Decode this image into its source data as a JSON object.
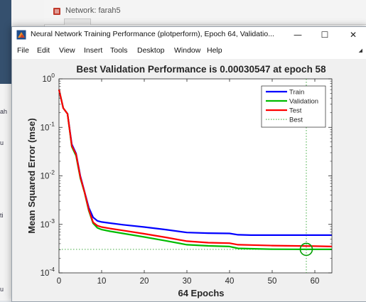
{
  "background_window": {
    "title": "Network: farah5",
    "left_fragments": [
      "ah",
      "u",
      "ti",
      "u"
    ]
  },
  "window": {
    "title": "Neural Network Training Performance (plotperform), Epoch 64, Validatio...",
    "controls": {
      "minimize": "—",
      "maximize": "☐",
      "close": "✕"
    },
    "icon": "matlab-figure-icon"
  },
  "menubar": {
    "items": [
      "File",
      "Edit",
      "View",
      "Insert",
      "Tools",
      "Desktop",
      "Window",
      "Help"
    ]
  },
  "chart_data": {
    "type": "line",
    "title": "Best Validation Performance is 0.00030547 at epoch 58",
    "xlabel": "64 Epochs",
    "ylabel": "Mean Squared Error  (mse)",
    "yscale": "log",
    "xlim": [
      0,
      64
    ],
    "ylim": [
      0.0001,
      1
    ],
    "xticks": [
      0,
      10,
      20,
      30,
      40,
      50,
      60
    ],
    "xtick_labels": [
      "0",
      "10",
      "20",
      "30",
      "40",
      "50",
      "60"
    ],
    "yticks": [
      0.0001,
      0.001,
      0.01,
      0.1,
      1
    ],
    "ytick_labels": [
      {
        "base": "10",
        "exp": "-4"
      },
      {
        "base": "10",
        "exp": "-3"
      },
      {
        "base": "10",
        "exp": "-2"
      },
      {
        "base": "10",
        "exp": "-1"
      },
      {
        "base": "10",
        "exp": "0"
      }
    ],
    "grid": false,
    "legend_position": "top-right",
    "series": [
      {
        "name": "Train",
        "color": "#0000ff",
        "x": [
          0,
          1,
          2,
          3,
          4,
          5,
          6,
          7,
          8,
          9,
          10,
          12,
          15,
          20,
          25,
          30,
          35,
          40,
          42,
          45,
          50,
          55,
          60,
          64
        ],
        "y": [
          0.6,
          0.25,
          0.19,
          0.045,
          0.029,
          0.01,
          0.0047,
          0.0022,
          0.0014,
          0.00118,
          0.00112,
          0.00106,
          0.00098,
          0.00088,
          0.00078,
          0.00068,
          0.00066,
          0.00065,
          0.00061,
          0.0006,
          0.0006,
          0.0006,
          0.0006,
          0.0006
        ]
      },
      {
        "name": "Validation",
        "color": "#00bb00",
        "x": [
          0,
          1,
          2,
          3,
          4,
          5,
          6,
          7,
          8,
          9,
          10,
          12,
          15,
          20,
          25,
          30,
          35,
          40,
          42,
          45,
          50,
          55,
          58,
          60,
          64
        ],
        "y": [
          0.6,
          0.25,
          0.19,
          0.04,
          0.026,
          0.009,
          0.0045,
          0.0019,
          0.00105,
          0.00085,
          0.00078,
          0.00072,
          0.00065,
          0.00055,
          0.00046,
          0.00038,
          0.00036,
          0.00035,
          0.00032,
          0.000315,
          0.000308,
          0.000306,
          0.00030547,
          0.000305,
          0.000305
        ]
      },
      {
        "name": "Test",
        "color": "#ff0000",
        "x": [
          0,
          1,
          2,
          3,
          4,
          5,
          6,
          7,
          8,
          9,
          10,
          12,
          15,
          20,
          25,
          30,
          35,
          40,
          42,
          45,
          50,
          55,
          60,
          64
        ],
        "y": [
          0.6,
          0.25,
          0.19,
          0.042,
          0.028,
          0.0095,
          0.0046,
          0.002,
          0.0011,
          0.00094,
          0.00088,
          0.00082,
          0.00075,
          0.00064,
          0.00054,
          0.00045,
          0.00042,
          0.00041,
          0.00038,
          0.000375,
          0.000365,
          0.00036,
          0.000355,
          0.00035
        ]
      },
      {
        "name": "Best",
        "color": "#2aa02a",
        "style": "dotted",
        "best_epoch": 58,
        "best_value": 0.00030547
      }
    ]
  }
}
